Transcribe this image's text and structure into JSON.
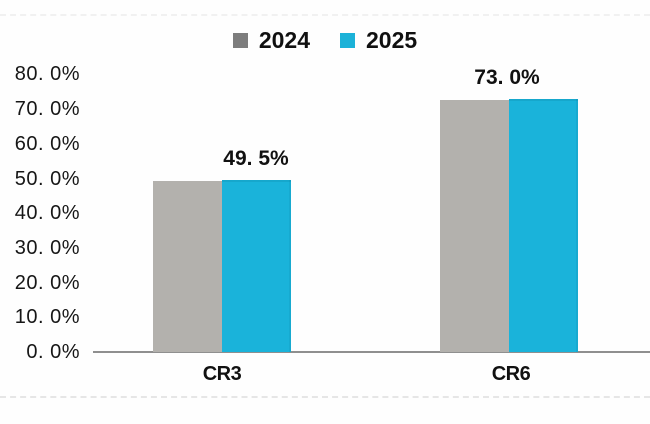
{
  "chart_data": {
    "type": "bar",
    "title": "",
    "categories": [
      "CR3",
      "CR6"
    ],
    "series": [
      {
        "name": "2024",
        "values": [
          49.3,
          72.6
        ],
        "bar_color": "#b3b1ad",
        "legend_color": "#7d7d7d",
        "data_labels": [
          "",
          ""
        ]
      },
      {
        "name": "2025",
        "values": [
          49.5,
          73.0
        ],
        "bar_color": "#1ab3da",
        "legend_color": "#1cb2d8",
        "data_labels": [
          "49. 5%",
          "73. 0%"
        ]
      }
    ],
    "y_axis": {
      "min": 0,
      "max": 80,
      "ticks": [
        {
          "value": 80,
          "label": "80. 0%"
        },
        {
          "value": 70,
          "label": "70. 0%"
        },
        {
          "value": 60,
          "label": "60. 0%"
        },
        {
          "value": 50,
          "label": "50. 0%"
        },
        {
          "value": 40,
          "label": "40. 0%"
        },
        {
          "value": 30,
          "label": "30. 0%"
        },
        {
          "value": 20,
          "label": "20. 0%"
        },
        {
          "value": 10,
          "label": "10. 0%"
        },
        {
          "value": 0,
          "label": "0. 0%"
        }
      ]
    },
    "grid": false,
    "legend_position": "top-center",
    "colors": {
      "axis_line": "#8f8f8f",
      "text": "#111111",
      "background": "#fefefe"
    }
  }
}
